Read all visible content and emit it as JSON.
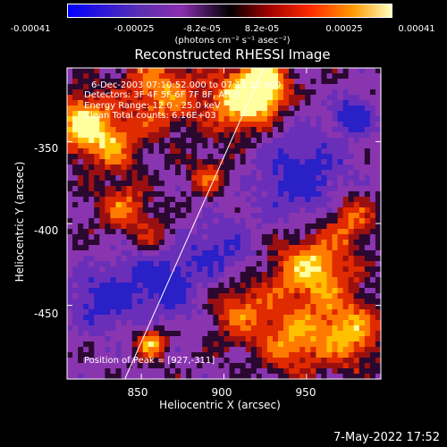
{
  "colorbar": {
    "ticks": [
      "-0.00041",
      "-0.00025",
      "-8.2e-05",
      "8.2e-05",
      "0.00025",
      "0.00041"
    ],
    "units": "(photons cm⁻² s⁻¹ asec⁻²)",
    "colors": [
      "#0000ff",
      "#5a2fb0",
      "#8a2fb0",
      "#000000",
      "#a00000",
      "#ff2a00",
      "#ff9900",
      "#ffffc0"
    ]
  },
  "info": {
    "line1": "6-Dec-2003 07:10:52.000 to 07:15:12.000",
    "line2": "Detectors: 3F 4F 5F 6F 7F 8F, Att 0",
    "line3": "Energy Range: 12.0 - 25.0 keV",
    "line4": "Clean     Total counts: 6.16E+03",
    "peak": "Position of Peak = [927,-311]"
  },
  "footer": {
    "date": "7-May-2022 17:52"
  },
  "chart_data": {
    "type": "heatmap",
    "title": "Reconstructed RHESSI Image",
    "xlabel": "Heliocentric X (arcsec)",
    "ylabel": "Heliocentric Y (arcsec)",
    "xlim": [
      805,
      995
    ],
    "ylim": [
      -495,
      -305
    ],
    "x_ticks": [
      "850",
      "900",
      "950"
    ],
    "y_ticks": [
      "-350",
      "-400",
      "-450"
    ],
    "x_tick_values": [
      850,
      900,
      950
    ],
    "y_tick_values": [
      -350,
      -400,
      -450
    ],
    "limb_line": {
      "x": [
        840,
        924
      ],
      "y": [
        -495,
        -305
      ]
    },
    "peak_position": [
      927,
      -311
    ]
  }
}
